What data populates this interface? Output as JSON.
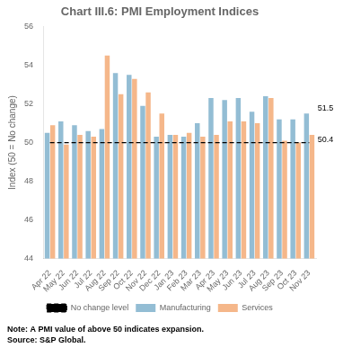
{
  "chart_data": {
    "type": "bar",
    "title": "Chart III.6: PMI Employment Indices",
    "categories": [
      "Apr 22",
      "May 22",
      "Jun 22",
      "Jul 22",
      "Aug 22",
      "Sep 22",
      "Oct 22",
      "Nov 22",
      "Dec 22",
      "Jan 23",
      "Feb 23",
      "Mar 23",
      "Apr 23",
      "May 23",
      "Jun 23",
      "Jul 23",
      "Aug 23",
      "Sep 23",
      "Oct 23",
      "Nov 23"
    ],
    "series": [
      {
        "name": "Manufacturing",
        "color": "#93bdd4",
        "values": [
          50.5,
          51.1,
          50.9,
          50.6,
          50.7,
          53.6,
          53.5,
          51.9,
          50.3,
          50.4,
          50.3,
          51.0,
          52.3,
          52.2,
          52.3,
          51.6,
          52.4,
          51.2,
          51.2,
          51.5
        ]
      },
      {
        "name": "Services",
        "color": "#f5b78a",
        "values": [
          50.9,
          49.9,
          50.4,
          50.3,
          54.5,
          52.5,
          53.3,
          52.6,
          51.5,
          50.4,
          50.5,
          50.3,
          50.4,
          51.1,
          51.1,
          51.0,
          52.3,
          50.1,
          50.0,
          50.4
        ]
      },
      {
        "name": "No change level",
        "type": "line",
        "color": "#000000",
        "line_style": "dashed",
        "values": [
          50,
          50,
          50,
          50,
          50,
          50,
          50,
          50,
          50,
          50,
          50,
          50,
          50,
          50,
          50,
          50,
          50,
          50,
          50,
          50
        ]
      }
    ],
    "ylim": [
      44,
      56
    ],
    "yticks": [
      44,
      46,
      48,
      50,
      52,
      54,
      56
    ],
    "ylabel": "Index (50 = No change)",
    "grid": false,
    "legend": "bottom",
    "annotations": [
      {
        "text": "51.5",
        "x": "Nov 23",
        "y": 51.5
      },
      {
        "text": "50.4",
        "x": "Nov 23",
        "y": 50.4
      }
    ],
    "note": "Note: A PMI value of above 50 indicates expansion.",
    "source": "Source: S&P Global."
  }
}
